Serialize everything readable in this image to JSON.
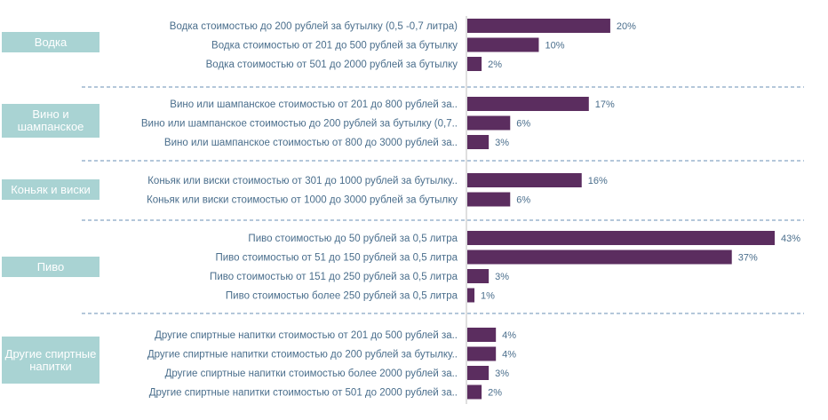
{
  "chart_data": {
    "type": "bar",
    "orientation": "horizontal",
    "unit": "%",
    "colors": {
      "bar": "#5b2d5f",
      "group_box": "#a9d3d3",
      "label": "#4a6e8c",
      "value": "#4a6e8c",
      "divider": "#6a8fb5"
    },
    "groups": [
      {
        "name": "Водка",
        "items": [
          {
            "label": "Водка стоимостью до 200 рублей за бутылку (0,5 -0,7 литра)",
            "value": 20,
            "value_label": "20%"
          },
          {
            "label": "Водка стоимостью от 201 до 500 рублей за бутылку",
            "value": 10,
            "value_label": "10%"
          },
          {
            "label": "Водка стоимостью от 501 до 2000 рублей за бутылку",
            "value": 2,
            "value_label": "2%"
          }
        ]
      },
      {
        "name": "Вино и шампанское",
        "items": [
          {
            "label": "Вино или шампанское стоимостью от 201 до 800 рублей за..",
            "value": 17,
            "value_label": "17%"
          },
          {
            "label": "Вино или шампанское стоимостью до 200 рублей за бутылку (0,7..",
            "value": 6,
            "value_label": "6%"
          },
          {
            "label": "Вино или шампанское стоимостью от 800 до 3000 рублей за..",
            "value": 3,
            "value_label": "3%"
          }
        ]
      },
      {
        "name": "Коньяк и виски",
        "items": [
          {
            "label": "Коньяк или виски  стоимостью от 301 до 1000 рублей за бутылку..",
            "value": 16,
            "value_label": "16%"
          },
          {
            "label": "Коньяк  или виски стоимостью от  1000  до 3000 рублей за бутылку",
            "value": 6,
            "value_label": "6%"
          }
        ]
      },
      {
        "name": "Пиво",
        "items": [
          {
            "label": "Пиво стоимостью до 50 рублей за 0,5 литра",
            "value": 43,
            "value_label": "43%"
          },
          {
            "label": "Пиво  стоимостью от 51 до 150 рублей за 0,5 литра",
            "value": 37,
            "value_label": "37%"
          },
          {
            "label": "Пиво стоимостью от 151 до 250 рублей за 0,5 литра",
            "value": 3,
            "value_label": "3%"
          },
          {
            "label": "Пиво стоимостью более 250 рублей за 0,5 литра",
            "value": 1,
            "value_label": "1%"
          }
        ]
      },
      {
        "name": "Другие спиртные напитки",
        "items": [
          {
            "label": "Другие спиртные напитки стоимостью от 201 до 500 рублей за..",
            "value": 4,
            "value_label": "4%"
          },
          {
            "label": "Другие спиртные напитки стоимостью до 200 рублей за бутылку..",
            "value": 4,
            "value_label": "4%"
          },
          {
            "label": "Другие спиртные напитки стоимостью более 2000 рублей за..",
            "value": 3,
            "value_label": "3%"
          },
          {
            "label": "Другие спиртные напитки стоимостью от 501 до 2000 рублей за..",
            "value": 2,
            "value_label": "2%"
          }
        ]
      }
    ],
    "xlim": [
      0,
      43
    ],
    "grid": false,
    "legend": "none"
  }
}
